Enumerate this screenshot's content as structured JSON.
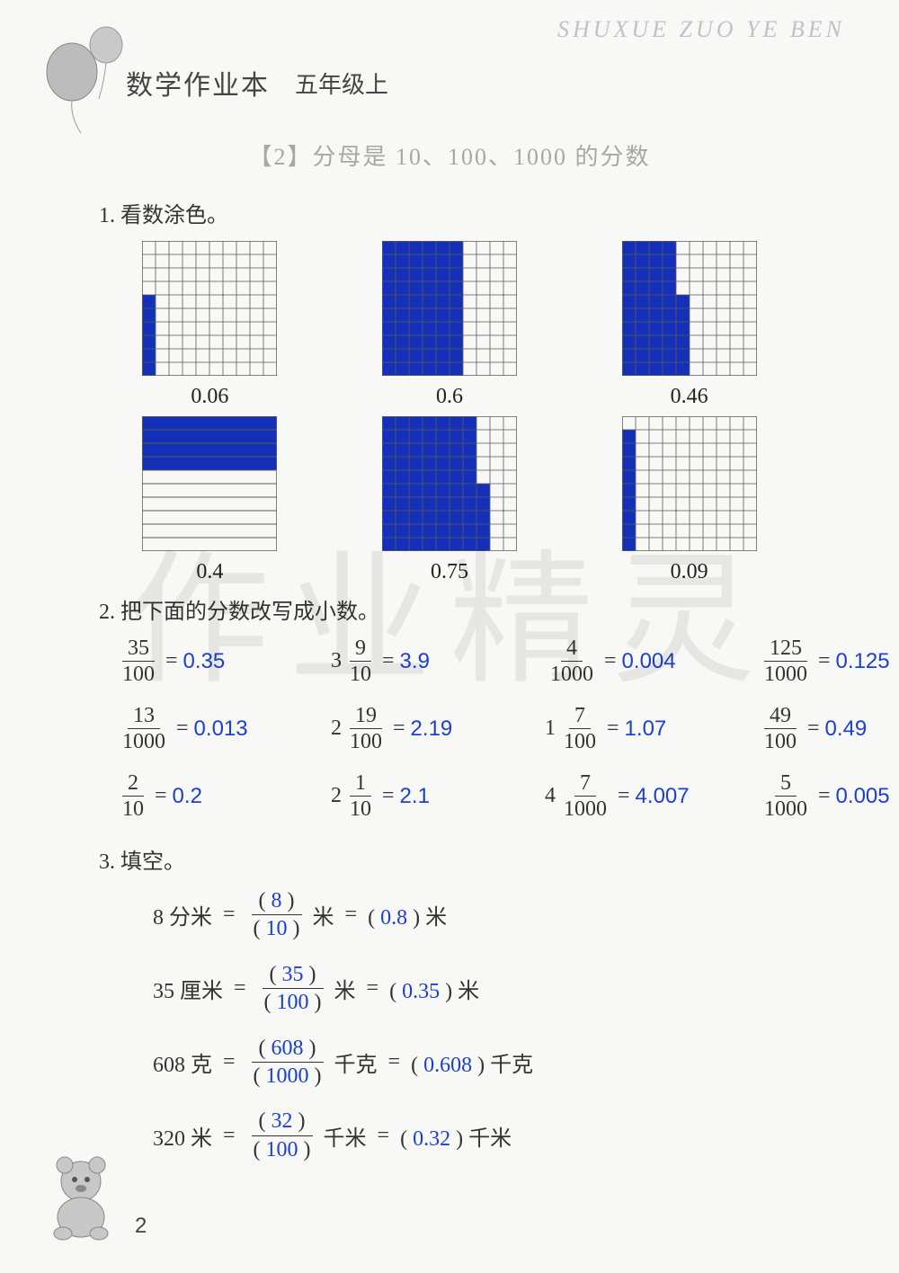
{
  "corner_watermark": "SHUXUE ZUO YE BEN",
  "header": {
    "book_title": "数学作业本",
    "grade": "五年级上"
  },
  "section_title": "【2】分母是 10、100、1000 的分数",
  "big_watermark": "作业精灵",
  "page_number": "2",
  "colors": {
    "fill": "#1430b8",
    "grid_line": "#5a5a5a",
    "answer": "#1b3fd6",
    "text": "#333333",
    "bg": "#f8f8f6"
  },
  "q1": {
    "label": "1.  看数涂色。",
    "grid_size": 150,
    "cells": 10,
    "grids": [
      {
        "caption": "0.06",
        "type": "col-grid",
        "filled": 6,
        "partial_col_height": 6
      },
      {
        "caption": "0.6",
        "type": "col-grid",
        "filled": 60
      },
      {
        "caption": "0.46",
        "type": "col-grid",
        "filled": 46
      },
      {
        "caption": "0.4",
        "type": "row-bars",
        "filled": 4
      },
      {
        "caption": "0.75",
        "type": "col-grid",
        "filled": 75
      },
      {
        "caption": "0.09",
        "type": "col-grid",
        "filled": 9
      }
    ]
  },
  "q2": {
    "label": "2.  把下面的分数改写成小数。",
    "rows": [
      [
        {
          "whole": "",
          "num": "35",
          "den": "100",
          "ans": "0.35"
        },
        {
          "whole": "3",
          "num": "9",
          "den": "10",
          "ans": "3.9"
        },
        {
          "whole": "",
          "num": "4",
          "den": "1000",
          "ans": "0.004"
        },
        {
          "whole": "",
          "num": "125",
          "den": "1000",
          "ans": "0.125"
        }
      ],
      [
        {
          "whole": "",
          "num": "13",
          "den": "1000",
          "ans": "0.013"
        },
        {
          "whole": "2",
          "num": "19",
          "den": "100",
          "ans": "2.19"
        },
        {
          "whole": "1",
          "num": "7",
          "den": "100",
          "ans": "1.07"
        },
        {
          "whole": "",
          "num": "49",
          "den": "100",
          "ans": "0.49"
        }
      ],
      [
        {
          "whole": "",
          "num": "2",
          "den": "10",
          "ans": "0.2"
        },
        {
          "whole": "2",
          "num": "1",
          "den": "10",
          "ans": "2.1"
        },
        {
          "whole": "4",
          "num": "7",
          "den": "1000",
          "ans": "4.007"
        },
        {
          "whole": "",
          "num": "5",
          "den": "1000",
          "ans": "0.005"
        }
      ]
    ]
  },
  "q3": {
    "label": "3.  填空。",
    "rows": [
      {
        "lhs_val": "8",
        "lhs_unit": "分米",
        "num": "8",
        "den": "10",
        "mid_unit": "米",
        "dec": "0.8",
        "end_unit": "米"
      },
      {
        "lhs_val": "35",
        "lhs_unit": "厘米",
        "num": "35",
        "den": "100",
        "mid_unit": "米",
        "dec": "0.35",
        "end_unit": "米"
      },
      {
        "lhs_val": "608",
        "lhs_unit": "克",
        "num": "608",
        "den": "1000",
        "mid_unit": "千克",
        "dec": "0.608",
        "end_unit": "千克"
      },
      {
        "lhs_val": "320",
        "lhs_unit": "米",
        "num": "32",
        "den": "100",
        "mid_unit": "千米",
        "dec": "0.32",
        "end_unit": "千米"
      }
    ]
  }
}
